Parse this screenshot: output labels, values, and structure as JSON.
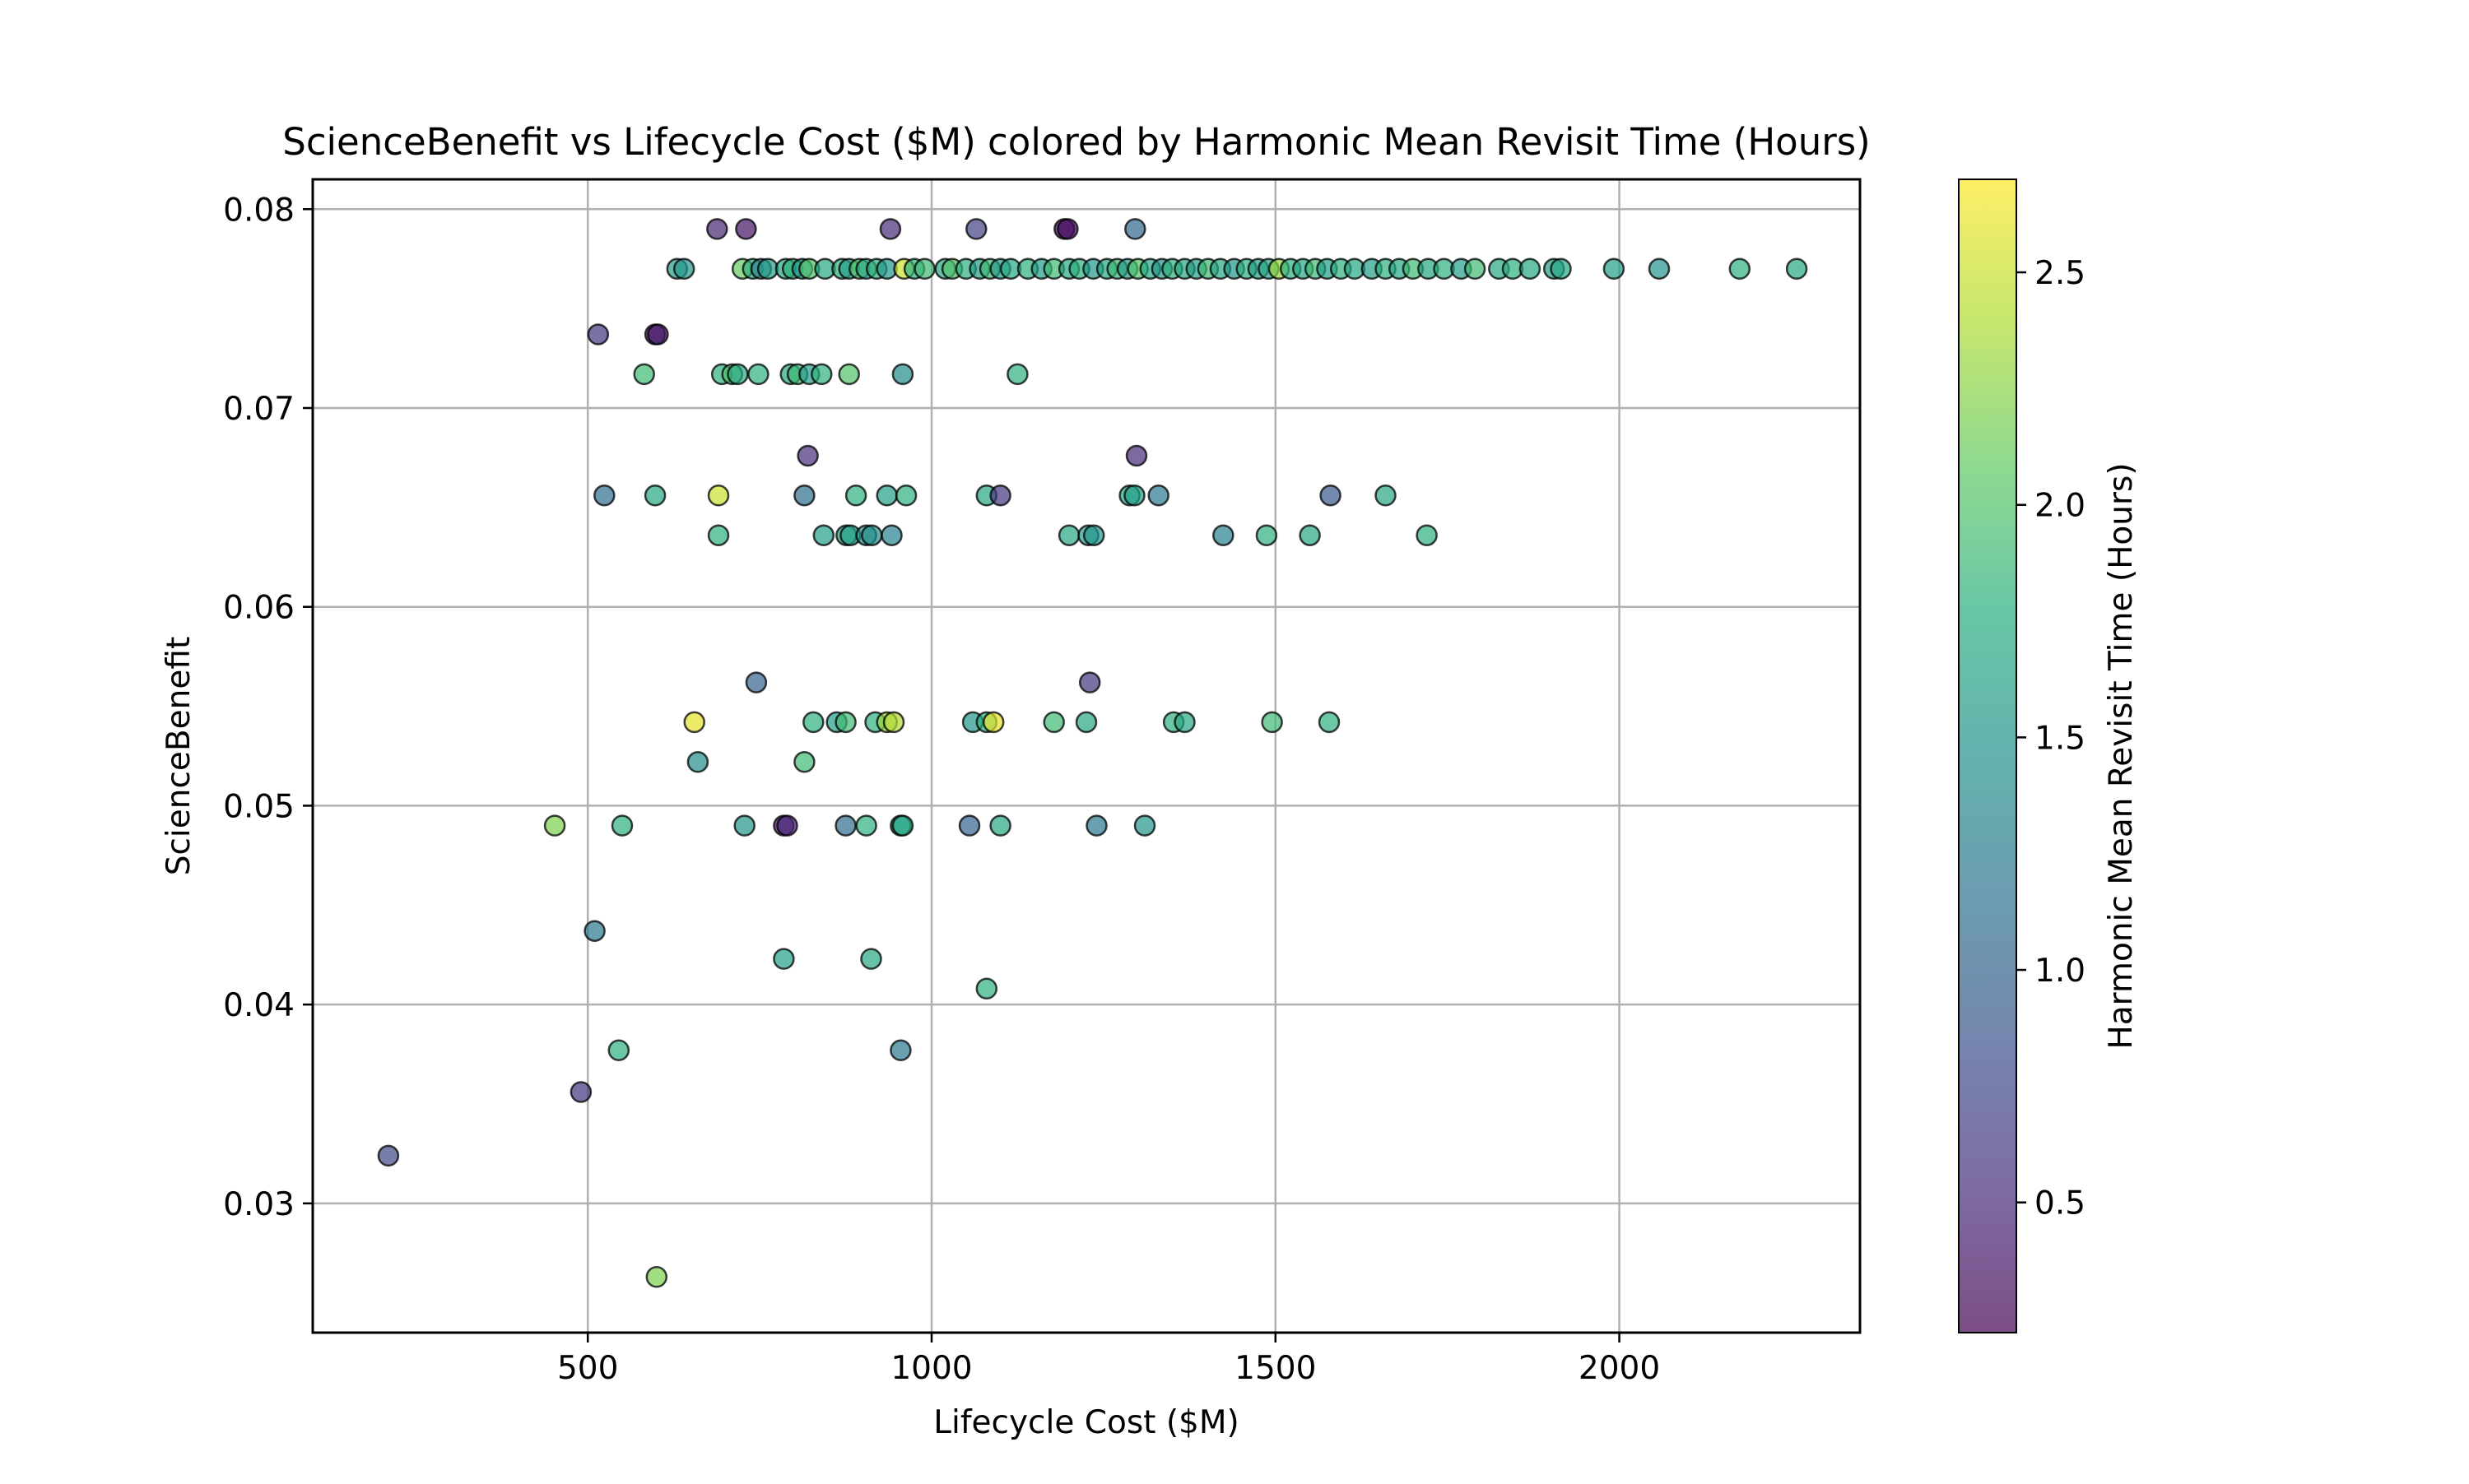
{
  "chart_data": {
    "type": "scatter",
    "title": "ScienceBenefit vs Lifecycle Cost ($M) colored by Harmonic Mean Revisit Time (Hours)",
    "xlabel": "Lifecycle Cost ($M)",
    "ylabel": "ScienceBenefit",
    "colorbar_label": "Harmonic Mean Revisit Time (Hours)",
    "colormap": "viridis",
    "xlim": [
      100,
      2350
    ],
    "ylim": [
      0.0235,
      0.0815
    ],
    "clim": [
      0.22,
      2.7
    ],
    "xticks": [
      500,
      1000,
      1500,
      2000
    ],
    "xtick_labels": [
      "500",
      "1000",
      "1500",
      "2000"
    ],
    "yticks": [
      0.03,
      0.04,
      0.05,
      0.06,
      0.07,
      0.08
    ],
    "ytick_labels": [
      "0.03",
      "0.04",
      "0.05",
      "0.06",
      "0.07",
      "0.08"
    ],
    "cticks": [
      0.5,
      1.0,
      1.5,
      2.0,
      2.5
    ],
    "ctick_labels": [
      "0.5",
      "1.0",
      "1.5",
      "2.0",
      "2.5"
    ],
    "grid": true,
    "points": [
      [
        688,
        0.079,
        0.45
      ],
      [
        730,
        0.079,
        0.35
      ],
      [
        940,
        0.079,
        0.5
      ],
      [
        1065,
        0.079,
        0.7
      ],
      [
        1193,
        0.079,
        0.25
      ],
      [
        1198,
        0.079,
        0.3
      ],
      [
        1296,
        0.079,
        1.05
      ],
      [
        630,
        0.077,
        1.6
      ],
      [
        640,
        0.077,
        1.5
      ],
      [
        725,
        0.077,
        2.1
      ],
      [
        740,
        0.077,
        1.8
      ],
      [
        752,
        0.077,
        1.3
      ],
      [
        762,
        0.077,
        1.6
      ],
      [
        788,
        0.077,
        1.7
      ],
      [
        798,
        0.077,
        1.8
      ],
      [
        812,
        0.077,
        1.5
      ],
      [
        822,
        0.077,
        2.0
      ],
      [
        845,
        0.077,
        1.7
      ],
      [
        870,
        0.077,
        1.8
      ],
      [
        880,
        0.077,
        1.6
      ],
      [
        895,
        0.077,
        2.0
      ],
      [
        905,
        0.077,
        1.7
      ],
      [
        920,
        0.077,
        1.8
      ],
      [
        935,
        0.077,
        1.5
      ],
      [
        960,
        0.077,
        2.5
      ],
      [
        975,
        0.077,
        1.8
      ],
      [
        990,
        0.077,
        1.9
      ],
      [
        1020,
        0.077,
        1.7
      ],
      [
        1030,
        0.077,
        2.0
      ],
      [
        1050,
        0.077,
        1.8
      ],
      [
        1070,
        0.077,
        1.6
      ],
      [
        1085,
        0.077,
        1.9
      ],
      [
        1100,
        0.077,
        1.6
      ],
      [
        1115,
        0.077,
        1.7
      ],
      [
        1140,
        0.077,
        1.8
      ],
      [
        1160,
        0.077,
        1.6
      ],
      [
        1178,
        0.077,
        1.9
      ],
      [
        1200,
        0.077,
        1.7
      ],
      [
        1215,
        0.077,
        1.8
      ],
      [
        1235,
        0.077,
        1.5
      ],
      [
        1255,
        0.077,
        1.7
      ],
      [
        1270,
        0.077,
        1.9
      ],
      [
        1285,
        0.077,
        1.6
      ],
      [
        1300,
        0.077,
        2.0
      ],
      [
        1318,
        0.077,
        1.7
      ],
      [
        1335,
        0.077,
        1.5
      ],
      [
        1350,
        0.077,
        1.8
      ],
      [
        1368,
        0.077,
        1.7
      ],
      [
        1385,
        0.077,
        1.6
      ],
      [
        1402,
        0.077,
        1.9
      ],
      [
        1420,
        0.077,
        1.7
      ],
      [
        1440,
        0.077,
        1.5
      ],
      [
        1458,
        0.077,
        1.8
      ],
      [
        1475,
        0.077,
        1.6
      ],
      [
        1490,
        0.077,
        1.7
      ],
      [
        1505,
        0.077,
        2.3
      ],
      [
        1522,
        0.077,
        1.8
      ],
      [
        1540,
        0.077,
        1.7
      ],
      [
        1558,
        0.077,
        1.9
      ],
      [
        1575,
        0.077,
        1.6
      ],
      [
        1595,
        0.077,
        1.8
      ],
      [
        1615,
        0.077,
        1.7
      ],
      [
        1640,
        0.077,
        1.6
      ],
      [
        1660,
        0.077,
        1.8
      ],
      [
        1680,
        0.077,
        1.7
      ],
      [
        1700,
        0.077,
        1.9
      ],
      [
        1722,
        0.077,
        1.7
      ],
      [
        1745,
        0.077,
        1.8
      ],
      [
        1770,
        0.077,
        1.6
      ],
      [
        1790,
        0.077,
        1.9
      ],
      [
        1825,
        0.077,
        1.7
      ],
      [
        1845,
        0.077,
        1.8
      ],
      [
        1870,
        0.077,
        1.7
      ],
      [
        1905,
        0.077,
        1.6
      ],
      [
        1915,
        0.077,
        1.7
      ],
      [
        1992,
        0.077,
        1.6
      ],
      [
        2058,
        0.077,
        1.5
      ],
      [
        2175,
        0.077,
        1.8
      ],
      [
        2258,
        0.077,
        1.7
      ],
      [
        515,
        0.0737,
        0.6
      ],
      [
        598,
        0.0737,
        0.3
      ],
      [
        602,
        0.0737,
        0.4
      ],
      [
        582,
        0.0717,
        1.9
      ],
      [
        695,
        0.0717,
        1.8
      ],
      [
        710,
        0.0717,
        2.0
      ],
      [
        718,
        0.0717,
        1.7
      ],
      [
        748,
        0.0717,
        1.8
      ],
      [
        795,
        0.0717,
        1.7
      ],
      [
        805,
        0.0717,
        1.9
      ],
      [
        822,
        0.0717,
        1.6
      ],
      [
        840,
        0.0717,
        1.8
      ],
      [
        880,
        0.0717,
        2.0
      ],
      [
        958,
        0.0717,
        1.4
      ],
      [
        1125,
        0.0717,
        1.8
      ],
      [
        820,
        0.0676,
        0.55
      ],
      [
        1298,
        0.0676,
        0.5
      ],
      [
        524,
        0.0656,
        1.1
      ],
      [
        598,
        0.0656,
        1.7
      ],
      [
        690,
        0.0656,
        2.5
      ],
      [
        815,
        0.0656,
        1.1
      ],
      [
        890,
        0.0656,
        1.8
      ],
      [
        935,
        0.0656,
        1.6
      ],
      [
        963,
        0.0656,
        1.8
      ],
      [
        1080,
        0.0656,
        1.7
      ],
      [
        1100,
        0.0656,
        0.6
      ],
      [
        1288,
        0.0656,
        1.7
      ],
      [
        1295,
        0.0656,
        1.6
      ],
      [
        1330,
        0.0656,
        1.2
      ],
      [
        1580,
        0.0656,
        0.9
      ],
      [
        1660,
        0.0656,
        1.7
      ],
      [
        690,
        0.0636,
        1.8
      ],
      [
        843,
        0.0636,
        1.6
      ],
      [
        876,
        0.0636,
        1.7
      ],
      [
        882,
        0.0636,
        1.6
      ],
      [
        905,
        0.0636,
        1.5
      ],
      [
        913,
        0.0636,
        1.4
      ],
      [
        942,
        0.0636,
        1.3
      ],
      [
        1200,
        0.0636,
        1.7
      ],
      [
        1228,
        0.0636,
        1.6
      ],
      [
        1236,
        0.0636,
        1.5
      ],
      [
        1424,
        0.0636,
        1.3
      ],
      [
        1487,
        0.0636,
        1.8
      ],
      [
        1550,
        0.0636,
        1.7
      ],
      [
        1720,
        0.0636,
        1.8
      ],
      [
        745,
        0.0562,
        1.0
      ],
      [
        1230,
        0.0562,
        0.6
      ],
      [
        655,
        0.0542,
        2.6
      ],
      [
        828,
        0.0542,
        1.8
      ],
      [
        862,
        0.0542,
        1.6
      ],
      [
        875,
        0.0542,
        1.9
      ],
      [
        918,
        0.0542,
        1.8
      ],
      [
        935,
        0.0542,
        2.3
      ],
      [
        945,
        0.0542,
        2.4
      ],
      [
        1060,
        0.0542,
        1.5
      ],
      [
        1080,
        0.0542,
        1.8
      ],
      [
        1090,
        0.0542,
        2.6
      ],
      [
        1178,
        0.0542,
        1.9
      ],
      [
        1225,
        0.0542,
        1.7
      ],
      [
        1352,
        0.0542,
        1.8
      ],
      [
        1368,
        0.0542,
        1.7
      ],
      [
        1495,
        0.0542,
        1.9
      ],
      [
        1578,
        0.0542,
        1.8
      ],
      [
        660,
        0.0522,
        1.4
      ],
      [
        815,
        0.0522,
        1.9
      ],
      [
        452,
        0.049,
        2.2
      ],
      [
        550,
        0.049,
        1.8
      ],
      [
        728,
        0.049,
        1.5
      ],
      [
        785,
        0.049,
        0.35
      ],
      [
        790,
        0.049,
        0.5
      ],
      [
        875,
        0.049,
        1.1
      ],
      [
        905,
        0.049,
        1.8
      ],
      [
        955,
        0.049,
        1.6
      ],
      [
        958,
        0.049,
        1.7
      ],
      [
        1055,
        0.049,
        1.0
      ],
      [
        1100,
        0.049,
        1.7
      ],
      [
        1240,
        0.049,
        1.2
      ],
      [
        1310,
        0.049,
        1.5
      ],
      [
        510,
        0.0437,
        1.2
      ],
      [
        785,
        0.0423,
        1.6
      ],
      [
        912,
        0.0423,
        1.7
      ],
      [
        1080,
        0.0408,
        1.8
      ],
      [
        545,
        0.0377,
        1.8
      ],
      [
        955,
        0.0377,
        1.2
      ],
      [
        490,
        0.0356,
        0.6
      ],
      [
        210,
        0.0324,
        0.75
      ],
      [
        600,
        0.0263,
        2.2
      ]
    ]
  }
}
